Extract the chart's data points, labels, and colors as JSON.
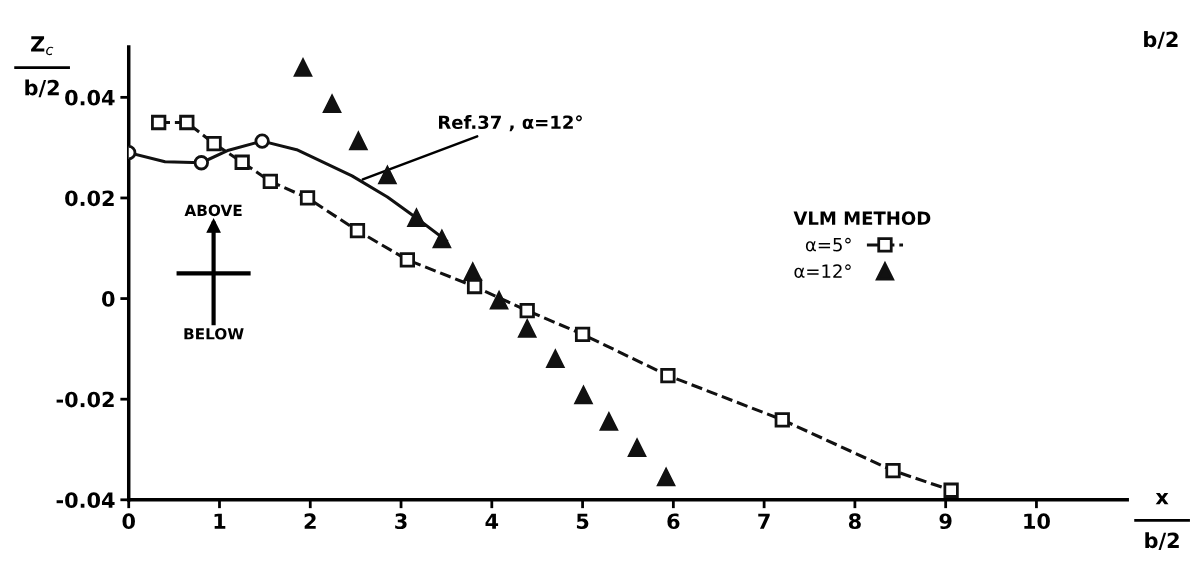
{
  "chart_data": {
    "type": "scatter",
    "xlabel": "x\nb/2",
    "ylabel": "Z$_{c}$\nb/2",
    "legend_title": "VLM METHOD",
    "legend": "right",
    "xlim": [
      0,
      11
    ],
    "ylim": [
      -0.04,
      0.05
    ],
    "xticks": [
      0,
      1,
      2,
      3,
      4,
      5,
      6,
      7,
      8,
      9,
      10
    ],
    "yticks": [
      -0.04,
      -0.02,
      0,
      0.02,
      0.04
    ],
    "grid": false,
    "series": [
      {
        "name": "α=5°",
        "type": "line",
        "marker": "square",
        "line_style": "dashed",
        "color": "#111111",
        "x": [
          0.33,
          0.64,
          0.94,
          1.25,
          1.56,
          1.97,
          2.52,
          3.07,
          3.81,
          4.39,
          5.0,
          5.94,
          7.2,
          8.42,
          9.06
        ],
        "values": [
          0.035,
          0.035,
          0.0308,
          0.0271,
          0.0233,
          0.02,
          0.0135,
          0.0077,
          0.0024,
          -0.0024,
          -0.0071,
          -0.0153,
          -0.0241,
          -0.0342,
          -0.0381
        ]
      },
      {
        "name": "α=12°",
        "marker": "triangle",
        "color": "#111111",
        "x": [
          1.92,
          2.24,
          2.53,
          2.85,
          3.17,
          3.45,
          3.79,
          4.08,
          4.39,
          4.7,
          5.01,
          5.29,
          5.6,
          5.92
        ],
        "values": [
          0.0459,
          0.0387,
          0.0313,
          0.0245,
          0.016,
          0.0118,
          0.0053,
          -0.0004,
          -0.006,
          -0.012,
          -0.0192,
          -0.0245,
          -0.0297,
          -0.0355
        ]
      },
      {
        "type": "line",
        "marker": "none",
        "line_style": "solid",
        "color": "#111111",
        "x": [
          0,
          0.4,
          0.8,
          1.1,
          1.47,
          1.85,
          2.46,
          2.85,
          3.17,
          3.5
        ],
        "values": [
          0.029,
          0.0272,
          0.027,
          0.0295,
          0.0313,
          0.0296,
          0.0244,
          0.0202,
          0.016,
          0.0115
        ]
      },
      {
        "type": "scatter",
        "marker": "circle",
        "color": "#111111",
        "x": [
          0,
          0.8,
          1.47
        ],
        "values": [
          0.029,
          0.027,
          0.0313
        ]
      }
    ],
    "annotations": [
      {
        "text": "Ref.37 , α=12°",
        "x": 2.55,
        "y": 0.0235
      },
      "ABOVE",
      "BELOW",
      "b/2"
    ]
  }
}
